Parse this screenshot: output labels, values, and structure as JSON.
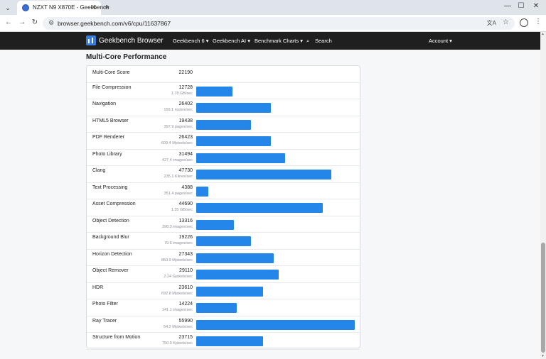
{
  "browser": {
    "tab_title": "NZXT N9 X870E - Geekbench",
    "url": "browser.geekbench.com/v6/cpu/11637867"
  },
  "sitenav": {
    "brand": "Geekbench Browser",
    "links": [
      "Geekbench 6 ▾",
      "Geekbench AI ▾",
      "Benchmark Charts ▾",
      "Search",
      "Account ▾"
    ]
  },
  "page": {
    "section_title": "Multi-Core Performance",
    "summary": {
      "name": "Multi-Core Score",
      "score": "22190"
    },
    "rows": [
      {
        "name": "File Compression",
        "score": "12728",
        "desc": "1.78 GB/sec",
        "value": 12728
      },
      {
        "name": "Navigation",
        "score": "26402",
        "desc": "159.1 routes/sec",
        "value": 26402
      },
      {
        "name": "HTML5 Browser",
        "score": "19438",
        "desc": "397.9 pages/sec",
        "value": 19438
      },
      {
        "name": "PDF Renderer",
        "score": "26423",
        "desc": "609.4 Mpixels/sec",
        "value": 26423
      },
      {
        "name": "Photo Library",
        "score": "31494",
        "desc": "427.4 images/sec",
        "value": 31494
      },
      {
        "name": "Clang",
        "score": "47730",
        "desc": "235.1 Klines/sec",
        "value": 47730
      },
      {
        "name": "Text Processing",
        "score": "4388",
        "desc": "351.4 pages/sec",
        "value": 4388
      },
      {
        "name": "Asset Compression",
        "score": "44690",
        "desc": "1.35 GB/sec",
        "value": 44690
      },
      {
        "name": "Object Detection",
        "score": "13316",
        "desc": "398.3 images/sec",
        "value": 13316
      },
      {
        "name": "Background Blur",
        "score": "19226",
        "desc": "79.6 images/sec",
        "value": 19226
      },
      {
        "name": "Horizon Detection",
        "score": "27343",
        "desc": "850.9 Mpixels/sec",
        "value": 27343
      },
      {
        "name": "Object Remover",
        "score": "29110",
        "desc": "2.24 Gpixels/sec",
        "value": 29110
      },
      {
        "name": "HDR",
        "score": "23610",
        "desc": "692.8 Mpixels/sec",
        "value": 23610
      },
      {
        "name": "Photo Filter",
        "score": "14224",
        "desc": "141.1 images/sec",
        "value": 14224
      },
      {
        "name": "Ray Tracer",
        "score": "55990",
        "desc": "54.2 Mpixels/sec",
        "value": 55990
      },
      {
        "name": "Structure from Motion",
        "score": "23715",
        "desc": "750.9 Kpixels/sec",
        "value": 23715
      }
    ],
    "bar_max": 55990
  },
  "colors": {
    "bar": "#2486e8",
    "nav_bg": "#1f1f1f"
  }
}
